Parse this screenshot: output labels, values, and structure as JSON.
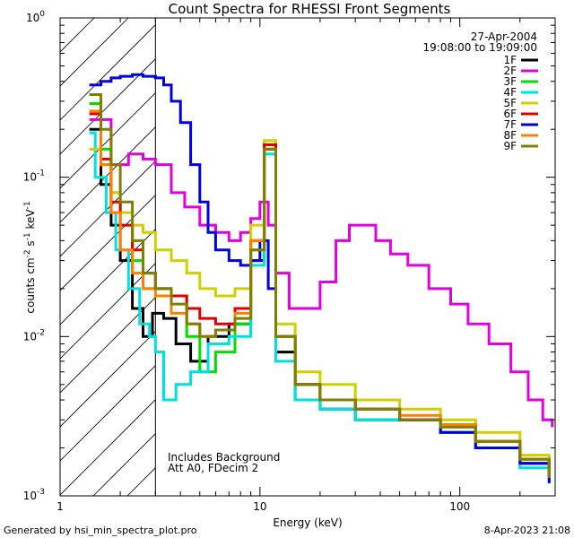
{
  "chart_data": {
    "type": "line",
    "title": "Count Spectra for RHESSI Front Segments",
    "xlabel": "Energy (keV)",
    "ylabel_parts": [
      "counts cm",
      "-2",
      " s",
      "-1",
      " keV",
      "-1"
    ],
    "x_scale": "log",
    "y_scale": "log",
    "xlim": [
      1,
      300
    ],
    "ylim": [
      0.001,
      1
    ],
    "x_ticks": [
      {
        "value": 1,
        "label": "1"
      },
      {
        "value": 10,
        "label": "10"
      },
      {
        "value": 100,
        "label": "100"
      }
    ],
    "y_ticks": [
      {
        "value": 1,
        "base": "10",
        "exp": "0"
      },
      {
        "value": 0.1,
        "base": "10",
        "exp": "-1"
      },
      {
        "value": 0.01,
        "base": "10",
        "exp": "-2"
      },
      {
        "value": 0.001,
        "base": "10",
        "exp": "-3"
      }
    ],
    "date": "27-Apr-2004",
    "time_range": "19:08:00 to 19:09:00",
    "annotations": [
      "Includes Background",
      "Att A0, FDecim 2"
    ],
    "hatched_region_x": [
      1,
      3
    ],
    "series": [
      {
        "name": "1F",
        "color": "#000000",
        "values": [
          [
            1.4,
            0.2
          ],
          [
            1.6,
            0.09
          ],
          [
            1.8,
            0.05
          ],
          [
            2.0,
            0.03
          ],
          [
            2.3,
            0.015
          ],
          [
            2.6,
            0.01
          ],
          [
            2.9,
            0.014
          ],
          [
            3.3,
            0.013
          ],
          [
            3.8,
            0.009
          ],
          [
            4.5,
            0.007
          ],
          [
            5.5,
            0.01
          ],
          [
            7,
            0.012
          ],
          [
            9,
            0.03
          ],
          [
            10.5,
            0.15
          ],
          [
            12,
            0.008
          ],
          [
            15,
            0.004
          ],
          [
            20,
            0.0035
          ],
          [
            30,
            0.003
          ],
          [
            50,
            0.003
          ],
          [
            80,
            0.0025
          ],
          [
            120,
            0.002
          ],
          [
            200,
            0.0016
          ],
          [
            280,
            0.0014
          ]
        ]
      },
      {
        "name": "2F",
        "color": "#e000e0",
        "values": [
          [
            1.4,
            0.23
          ],
          [
            1.8,
            0.12
          ],
          [
            2.2,
            0.14
          ],
          [
            2.6,
            0.13
          ],
          [
            3.0,
            0.12
          ],
          [
            3.6,
            0.08
          ],
          [
            4.2,
            0.065
          ],
          [
            5.0,
            0.05
          ],
          [
            6,
            0.045
          ],
          [
            7,
            0.04
          ],
          [
            8,
            0.045
          ],
          [
            9,
            0.055
          ],
          [
            10,
            0.07
          ],
          [
            11,
            0.05
          ],
          [
            12,
            0.025
          ],
          [
            14,
            0.015
          ],
          [
            17,
            0.015
          ],
          [
            20,
            0.022
          ],
          [
            24,
            0.04
          ],
          [
            28,
            0.05
          ],
          [
            32,
            0.05
          ],
          [
            38,
            0.04
          ],
          [
            45,
            0.033
          ],
          [
            55,
            0.028
          ],
          [
            70,
            0.02
          ],
          [
            90,
            0.016
          ],
          [
            110,
            0.012
          ],
          [
            140,
            0.009
          ],
          [
            180,
            0.006
          ],
          [
            220,
            0.004
          ],
          [
            260,
            0.003
          ],
          [
            290,
            0.0027
          ]
        ]
      },
      {
        "name": "3F",
        "color": "#00e000",
        "values": [
          [
            1.4,
            0.29
          ],
          [
            1.6,
            0.15
          ],
          [
            1.8,
            0.08
          ],
          [
            2.0,
            0.05
          ],
          [
            2.3,
            0.03
          ],
          [
            2.6,
            0.02
          ],
          [
            3.0,
            0.02
          ],
          [
            3.6,
            0.018
          ],
          [
            4.3,
            0.01
          ],
          [
            5.0,
            0.006
          ],
          [
            6,
            0.008
          ],
          [
            7.5,
            0.012
          ],
          [
            9,
            0.035
          ],
          [
            10.5,
            0.16
          ],
          [
            12,
            0.01
          ],
          [
            15,
            0.005
          ],
          [
            20,
            0.004
          ],
          [
            30,
            0.0035
          ],
          [
            50,
            0.003
          ],
          [
            80,
            0.0028
          ],
          [
            120,
            0.0022
          ],
          [
            200,
            0.0017
          ],
          [
            280,
            0.0013
          ]
        ]
      },
      {
        "name": "4F",
        "color": "#00e0e0",
        "values": [
          [
            1.4,
            0.19
          ],
          [
            1.5,
            0.1
          ],
          [
            1.7,
            0.06
          ],
          [
            1.9,
            0.035
          ],
          [
            2.2,
            0.02
          ],
          [
            2.5,
            0.012
          ],
          [
            2.8,
            0.01
          ],
          [
            3.0,
            0.008
          ],
          [
            3.3,
            0.004
          ],
          [
            3.8,
            0.005
          ],
          [
            4.5,
            0.006
          ],
          [
            5.5,
            0.009
          ],
          [
            7,
            0.01
          ],
          [
            9,
            0.028
          ],
          [
            10.5,
            0.14
          ],
          [
            12,
            0.007
          ],
          [
            15,
            0.004
          ],
          [
            20,
            0.0035
          ],
          [
            30,
            0.003
          ],
          [
            50,
            0.003
          ],
          [
            80,
            0.0025
          ],
          [
            120,
            0.002
          ],
          [
            200,
            0.0015
          ],
          [
            280,
            0.0012
          ]
        ]
      },
      {
        "name": "5F",
        "color": "#d0d000",
        "values": [
          [
            1.4,
            0.15
          ],
          [
            1.6,
            0.12
          ],
          [
            1.8,
            0.08
          ],
          [
            2.0,
            0.06
          ],
          [
            2.3,
            0.05
          ],
          [
            2.6,
            0.045
          ],
          [
            3.0,
            0.035
          ],
          [
            3.6,
            0.03
          ],
          [
            4.3,
            0.025
          ],
          [
            5.0,
            0.02
          ],
          [
            6,
            0.018
          ],
          [
            7.5,
            0.02
          ],
          [
            9,
            0.05
          ],
          [
            10.5,
            0.17
          ],
          [
            12,
            0.012
          ],
          [
            15,
            0.006
          ],
          [
            20,
            0.005
          ],
          [
            30,
            0.004
          ],
          [
            50,
            0.0035
          ],
          [
            80,
            0.003
          ],
          [
            120,
            0.0025
          ],
          [
            200,
            0.0018
          ],
          [
            280,
            0.0014
          ]
        ]
      },
      {
        "name": "6F",
        "color": "#e00000",
        "values": [
          [
            1.4,
            0.25
          ],
          [
            1.6,
            0.13
          ],
          [
            1.8,
            0.07
          ],
          [
            2.0,
            0.05
          ],
          [
            2.3,
            0.035
          ],
          [
            2.6,
            0.025
          ],
          [
            3.0,
            0.02
          ],
          [
            3.6,
            0.018
          ],
          [
            4.3,
            0.015
          ],
          [
            5.0,
            0.013
          ],
          [
            6,
            0.012
          ],
          [
            7.5,
            0.015
          ],
          [
            9,
            0.04
          ],
          [
            10.5,
            0.16
          ],
          [
            12,
            0.01
          ],
          [
            15,
            0.005
          ],
          [
            20,
            0.004
          ],
          [
            30,
            0.0035
          ],
          [
            50,
            0.003
          ],
          [
            80,
            0.0028
          ],
          [
            120,
            0.0022
          ],
          [
            200,
            0.0017
          ],
          [
            280,
            0.0013
          ]
        ]
      },
      {
        "name": "7F",
        "color": "#0000e0",
        "values": [
          [
            1.4,
            0.38
          ],
          [
            1.6,
            0.4
          ],
          [
            1.8,
            0.42
          ],
          [
            2.0,
            0.43
          ],
          [
            2.3,
            0.44
          ],
          [
            2.6,
            0.43
          ],
          [
            3.0,
            0.42
          ],
          [
            3.3,
            0.38
          ],
          [
            3.6,
            0.3
          ],
          [
            4.0,
            0.22
          ],
          [
            4.5,
            0.12
          ],
          [
            5.0,
            0.07
          ],
          [
            5.5,
            0.045
          ],
          [
            6,
            0.035
          ],
          [
            7,
            0.03
          ],
          [
            8,
            0.028
          ],
          [
            9,
            0.03
          ],
          [
            10,
            0.04
          ],
          [
            11,
            0.02
          ],
          [
            12,
            0.01
          ],
          [
            15,
            0.005
          ],
          [
            20,
            0.004
          ],
          [
            30,
            0.0035
          ],
          [
            50,
            0.003
          ],
          [
            80,
            0.0025
          ],
          [
            120,
            0.002
          ],
          [
            200,
            0.0016
          ],
          [
            280,
            0.0012
          ]
        ]
      },
      {
        "name": "8F",
        "color": "#ff8000",
        "values": [
          [
            1.4,
            0.26
          ],
          [
            1.6,
            0.12
          ],
          [
            1.8,
            0.06
          ],
          [
            2.0,
            0.035
          ],
          [
            2.3,
            0.025
          ],
          [
            2.6,
            0.02
          ],
          [
            3.0,
            0.018
          ],
          [
            3.6,
            0.014
          ],
          [
            4.3,
            0.012
          ],
          [
            5.0,
            0.01
          ],
          [
            6,
            0.011
          ],
          [
            7.5,
            0.014
          ],
          [
            9,
            0.04
          ],
          [
            10.5,
            0.15
          ],
          [
            12,
            0.01
          ],
          [
            15,
            0.005
          ],
          [
            20,
            0.004
          ],
          [
            30,
            0.0035
          ],
          [
            50,
            0.0032
          ],
          [
            80,
            0.0028
          ],
          [
            120,
            0.0022
          ],
          [
            200,
            0.0017
          ],
          [
            280,
            0.0013
          ]
        ]
      },
      {
        "name": "9F",
        "color": "#808000",
        "values": [
          [
            1.4,
            0.33
          ],
          [
            1.6,
            0.2
          ],
          [
            1.8,
            0.12
          ],
          [
            2.0,
            0.07
          ],
          [
            2.3,
            0.04
          ],
          [
            2.6,
            0.025
          ],
          [
            3.0,
            0.02
          ],
          [
            3.6,
            0.016
          ],
          [
            4.3,
            0.012
          ],
          [
            5.0,
            0.01
          ],
          [
            6,
            0.011
          ],
          [
            7.5,
            0.013
          ],
          [
            9,
            0.035
          ],
          [
            10.5,
            0.15
          ],
          [
            12,
            0.01
          ],
          [
            15,
            0.005
          ],
          [
            20,
            0.004
          ],
          [
            30,
            0.0035
          ],
          [
            50,
            0.003
          ],
          [
            80,
            0.0027
          ],
          [
            120,
            0.0022
          ],
          [
            200,
            0.0017
          ],
          [
            280,
            0.0013
          ]
        ]
      }
    ]
  },
  "footer": {
    "generated_by": "Generated by hsi_min_spectra_plot.pro",
    "timestamp": "8-Apr-2023 21:08"
  }
}
